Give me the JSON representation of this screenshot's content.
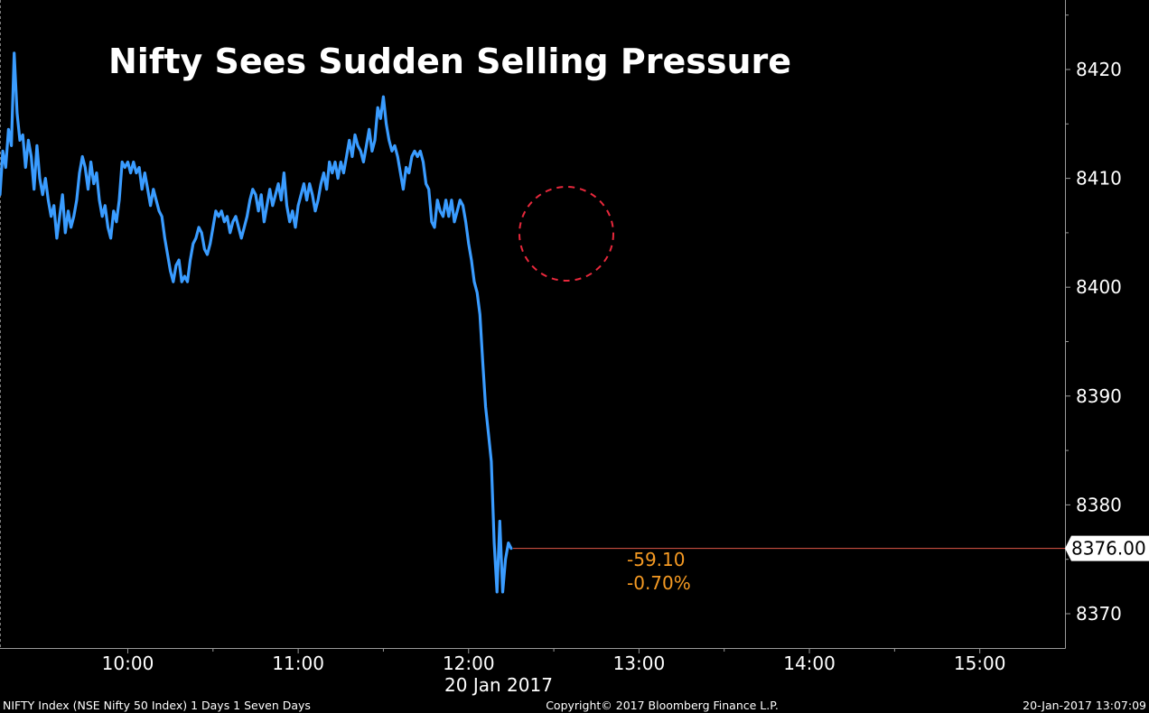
{
  "chart_data": {
    "type": "line",
    "title": "Nifty Sees Sudden Selling Pressure",
    "date_label": "20 Jan 2017",
    "x_ticks": [
      "10:00",
      "11:00",
      "12:00",
      "13:00",
      "14:00",
      "15:00"
    ],
    "y_ticks": [
      "8420",
      "8410",
      "8400",
      "8390",
      "8380",
      "8370"
    ],
    "xlim": [
      "09:15",
      "15:30"
    ],
    "ylim": [
      8367,
      8429
    ],
    "last_value_label": "8376.00",
    "last_value": 8376.0,
    "change_label": "-59.10",
    "change_pct_label": "-0.70%",
    "series": [
      {
        "color": "#3a9cff",
        "points": [
          [
            "09:15",
            8408.5
          ],
          [
            "09:16",
            8412.5
          ],
          [
            "09:17",
            8411.0
          ],
          [
            "09:18",
            8414.5
          ],
          [
            "09:19",
            8413.0
          ],
          [
            "09:20",
            8421.5
          ],
          [
            "09:21",
            8416.0
          ],
          [
            "09:22",
            8413.5
          ],
          [
            "09:23",
            8414.0
          ],
          [
            "09:24",
            8411.0
          ],
          [
            "09:25",
            8413.5
          ],
          [
            "09:26",
            8412.0
          ],
          [
            "09:27",
            8409.0
          ],
          [
            "09:28",
            8413.0
          ],
          [
            "09:29",
            8410.0
          ],
          [
            "09:30",
            8408.5
          ],
          [
            "09:31",
            8410.0
          ],
          [
            "09:32",
            8408.0
          ],
          [
            "09:33",
            8406.5
          ],
          [
            "09:34",
            8407.5
          ],
          [
            "09:35",
            8404.5
          ],
          [
            "09:36",
            8406.5
          ],
          [
            "09:37",
            8408.5
          ],
          [
            "09:38",
            8405.0
          ],
          [
            "09:39",
            8407.0
          ],
          [
            "09:40",
            8405.5
          ],
          [
            "09:41",
            8406.5
          ],
          [
            "09:42",
            8408.0
          ],
          [
            "09:43",
            8410.5
          ],
          [
            "09:44",
            8412.0
          ],
          [
            "09:45",
            8411.0
          ],
          [
            "09:46",
            8409.0
          ],
          [
            "09:47",
            8411.5
          ],
          [
            "09:48",
            8409.5
          ],
          [
            "09:49",
            8410.5
          ],
          [
            "09:50",
            8408.0
          ],
          [
            "09:51",
            8406.5
          ],
          [
            "09:52",
            8407.5
          ],
          [
            "09:53",
            8405.5
          ],
          [
            "09:54",
            8404.5
          ],
          [
            "09:55",
            8407.0
          ],
          [
            "09:56",
            8406.0
          ],
          [
            "09:57",
            8408.0
          ],
          [
            "09:58",
            8411.5
          ],
          [
            "09:59",
            8411.0
          ],
          [
            "10:00",
            8411.5
          ],
          [
            "10:01",
            8410.5
          ],
          [
            "10:02",
            8411.5
          ],
          [
            "10:03",
            8410.5
          ],
          [
            "10:04",
            8411.0
          ],
          [
            "10:05",
            8409.0
          ],
          [
            "10:06",
            8410.5
          ],
          [
            "10:07",
            8409.0
          ],
          [
            "10:08",
            8407.5
          ],
          [
            "10:09",
            8409.0
          ],
          [
            "10:10",
            8408.0
          ],
          [
            "10:11",
            8407.0
          ],
          [
            "10:12",
            8406.5
          ],
          [
            "10:13",
            8404.5
          ],
          [
            "10:14",
            8403.0
          ],
          [
            "10:15",
            8401.5
          ],
          [
            "10:16",
            8400.5
          ],
          [
            "10:17",
            8402.0
          ],
          [
            "10:18",
            8402.5
          ],
          [
            "10:19",
            8400.5
          ],
          [
            "10:20",
            8401.0
          ],
          [
            "10:21",
            8400.5
          ],
          [
            "10:22",
            8402.5
          ],
          [
            "10:23",
            8404.0
          ],
          [
            "10:24",
            8404.5
          ],
          [
            "10:25",
            8405.5
          ],
          [
            "10:26",
            8405.0
          ],
          [
            "10:27",
            8403.5
          ],
          [
            "10:28",
            8403.0
          ],
          [
            "10:29",
            8404.0
          ],
          [
            "10:30",
            8405.5
          ],
          [
            "10:31",
            8407.0
          ],
          [
            "10:32",
            8406.5
          ],
          [
            "10:33",
            8407.0
          ],
          [
            "10:34",
            8406.0
          ],
          [
            "10:35",
            8406.5
          ],
          [
            "10:36",
            8405.0
          ],
          [
            "10:37",
            8406.0
          ],
          [
            "10:38",
            8406.5
          ],
          [
            "10:39",
            8405.5
          ],
          [
            "10:40",
            8404.5
          ],
          [
            "10:41",
            8405.5
          ],
          [
            "10:42",
            8406.5
          ],
          [
            "10:43",
            8408.0
          ],
          [
            "10:44",
            8409.0
          ],
          [
            "10:45",
            8408.5
          ],
          [
            "10:46",
            8407.0
          ],
          [
            "10:47",
            8408.5
          ],
          [
            "10:48",
            8406.0
          ],
          [
            "10:49",
            8407.5
          ],
          [
            "10:50",
            8409.0
          ],
          [
            "10:51",
            8407.5
          ],
          [
            "10:52",
            8408.5
          ],
          [
            "10:53",
            8409.5
          ],
          [
            "10:54",
            8408.0
          ],
          [
            "10:55",
            8410.5
          ],
          [
            "10:56",
            8407.5
          ],
          [
            "10:57",
            8406.0
          ],
          [
            "10:58",
            8407.0
          ],
          [
            "10:59",
            8405.5
          ],
          [
            "11:00",
            8407.5
          ],
          [
            "11:01",
            8408.5
          ],
          [
            "11:02",
            8409.5
          ],
          [
            "11:03",
            8408.0
          ],
          [
            "11:04",
            8409.5
          ],
          [
            "11:05",
            8408.5
          ],
          [
            "11:06",
            8407.0
          ],
          [
            "11:07",
            8408.0
          ],
          [
            "11:08",
            8409.5
          ],
          [
            "11:09",
            8410.5
          ],
          [
            "11:10",
            8409.0
          ],
          [
            "11:11",
            8411.5
          ],
          [
            "11:12",
            8410.5
          ],
          [
            "11:13",
            8411.5
          ],
          [
            "11:14",
            8410.0
          ],
          [
            "11:15",
            8411.5
          ],
          [
            "11:16",
            8410.5
          ],
          [
            "11:17",
            8412.0
          ],
          [
            "11:18",
            8413.5
          ],
          [
            "11:19",
            8412.0
          ],
          [
            "11:20",
            8414.0
          ],
          [
            "11:21",
            8413.0
          ],
          [
            "11:22",
            8412.5
          ],
          [
            "11:23",
            8411.5
          ],
          [
            "11:24",
            8413.0
          ],
          [
            "11:25",
            8414.5
          ],
          [
            "11:26",
            8412.5
          ],
          [
            "11:27",
            8413.5
          ],
          [
            "11:28",
            8416.5
          ],
          [
            "11:29",
            8415.5
          ],
          [
            "11:30",
            8417.5
          ],
          [
            "11:31",
            8415.0
          ],
          [
            "11:32",
            8413.5
          ],
          [
            "11:33",
            8412.5
          ],
          [
            "11:34",
            8413.0
          ],
          [
            "11:35",
            8412.0
          ],
          [
            "11:36",
            8410.5
          ],
          [
            "11:37",
            8409.0
          ],
          [
            "11:38",
            8411.0
          ],
          [
            "11:39",
            8410.5
          ],
          [
            "11:40",
            8412.0
          ],
          [
            "11:41",
            8412.5
          ],
          [
            "11:42",
            8412.0
          ],
          [
            "11:43",
            8412.5
          ],
          [
            "11:44",
            8411.5
          ],
          [
            "11:45",
            8409.5
          ],
          [
            "11:46",
            8409.0
          ],
          [
            "11:47",
            8406.0
          ],
          [
            "11:48",
            8405.5
          ],
          [
            "11:49",
            8408.0
          ],
          [
            "11:50",
            8407.0
          ],
          [
            "11:51",
            8406.5
          ],
          [
            "11:52",
            8408.0
          ],
          [
            "11:53",
            8406.5
          ],
          [
            "11:54",
            8408.0
          ],
          [
            "11:55",
            8406.0
          ],
          [
            "11:56",
            8407.0
          ],
          [
            "11:57",
            8408.0
          ],
          [
            "11:58",
            8407.5
          ],
          [
            "11:59",
            8406.0
          ],
          [
            "12:00",
            8404.0
          ],
          [
            "12:01",
            8402.5
          ],
          [
            "12:02",
            8400.5
          ],
          [
            "12:03",
            8399.5
          ],
          [
            "12:04",
            8397.5
          ],
          [
            "12:05",
            8393.0
          ],
          [
            "12:06",
            8389.0
          ],
          [
            "12:07",
            8386.5
          ],
          [
            "12:08",
            8384.0
          ],
          [
            "12:09",
            8376.5
          ],
          [
            "12:10",
            8372.0
          ],
          [
            "12:11",
            8378.5
          ],
          [
            "12:12",
            8372.0
          ],
          [
            "12:13",
            8375.0
          ],
          [
            "12:14",
            8376.5
          ],
          [
            "12:15",
            8376.0
          ]
        ]
      }
    ]
  },
  "footer": {
    "security": "NIFTY Index (NSE Nifty 50 Index) 1 Days 1 Seven Days",
    "copyright": "Copyright© 2017 Bloomberg Finance L.P.",
    "timestamp": "20-Jan-2017 13:07:09"
  }
}
